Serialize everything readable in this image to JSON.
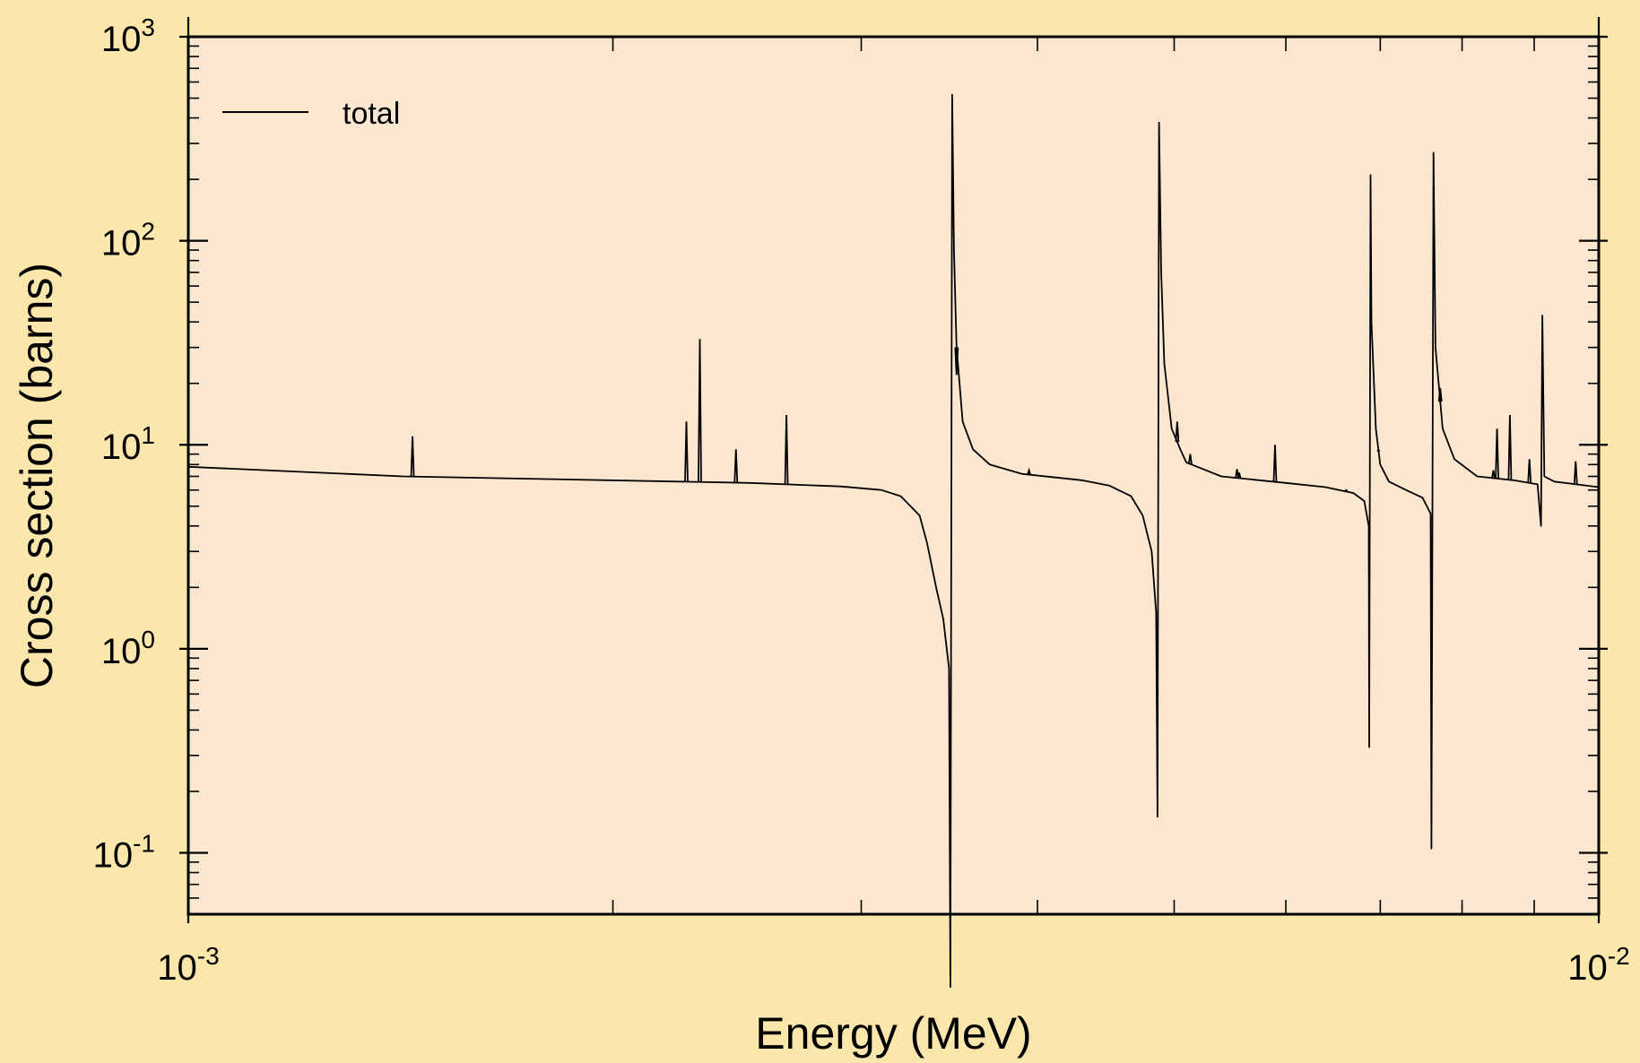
{
  "chart_data": {
    "type": "line",
    "title": "",
    "xlabel": "Energy (MeV)",
    "ylabel": "Cross section (barns)",
    "xscale": "log",
    "yscale": "log",
    "xlim": [
      0.001,
      0.01
    ],
    "ylim": [
      0.05,
      1000
    ],
    "x_ticks": [
      {
        "value": 0.001,
        "base": "10",
        "exp": "-3"
      },
      {
        "value": 0.01,
        "base": "10",
        "exp": "-2"
      }
    ],
    "y_ticks": [
      {
        "value": 0.1,
        "base": "10",
        "exp": "-1"
      },
      {
        "value": 1,
        "base": "10",
        "exp": "0"
      },
      {
        "value": 10,
        "base": "10",
        "exp": "1"
      },
      {
        "value": 100,
        "base": "10",
        "exp": "2"
      },
      {
        "value": 1000,
        "base": "10",
        "exp": "3"
      }
    ],
    "grid": false,
    "legend": {
      "position": "top-left",
      "entries": [
        "total"
      ]
    },
    "colors": {
      "plot_background": "#fbe7d0",
      "page_background": "#fbe7ac",
      "line": "#000000"
    },
    "series": [
      {
        "name": "total",
        "background_points": [
          [
            0.001,
            7.8
          ],
          [
            0.00142,
            7.0
          ],
          [
            0.0025,
            6.5
          ],
          [
            0.0029,
            6.25
          ],
          [
            0.0031,
            6.0
          ],
          [
            0.0032,
            5.6
          ],
          [
            0.0033,
            4.5
          ],
          [
            0.00334,
            3.3
          ],
          [
            0.00339,
            2.0
          ],
          [
            0.00343,
            1.4
          ],
          [
            0.003462,
            0.8
          ],
          [
            0.00347,
            0.022
          ],
          [
            0.00348,
            520
          ],
          [
            0.00349,
            90
          ],
          [
            0.003505,
            30
          ],
          [
            0.00354,
            13
          ],
          [
            0.0036,
            9.5
          ],
          [
            0.0037,
            8.0
          ],
          [
            0.0039,
            7.2
          ],
          [
            0.0043,
            6.7
          ],
          [
            0.0045,
            6.3
          ],
          [
            0.00466,
            5.6
          ],
          [
            0.00475,
            4.5
          ],
          [
            0.00482,
            3.0
          ],
          [
            0.004855,
            1.5
          ],
          [
            0.004866,
            0.15
          ],
          [
            0.004878,
            380
          ],
          [
            0.004895,
            70
          ],
          [
            0.00492,
            25
          ],
          [
            0.00498,
            12
          ],
          [
            0.00505,
            9.5
          ],
          [
            0.0051,
            8.2
          ],
          [
            0.0054,
            7.0
          ],
          [
            0.006,
            6.5
          ],
          [
            0.0064,
            6.2
          ],
          [
            0.0067,
            5.8
          ],
          [
            0.00682,
            5.3
          ],
          [
            0.00687,
            4.0
          ],
          [
            0.006875,
            0.33
          ],
          [
            0.00689,
            210
          ],
          [
            0.0069,
            40
          ],
          [
            0.00695,
            12
          ],
          [
            0.007,
            8.0
          ],
          [
            0.0071,
            6.6
          ],
          [
            0.0073,
            6.0
          ],
          [
            0.0075,
            5.5
          ],
          [
            0.0076,
            4.6
          ],
          [
            0.00761,
            0.105
          ],
          [
            0.007635,
            270
          ],
          [
            0.00766,
            30
          ],
          [
            0.00775,
            12
          ],
          [
            0.0079,
            8.5
          ],
          [
            0.0082,
            7.0
          ],
          [
            0.0087,
            6.7
          ],
          [
            0.00905,
            6.4
          ],
          [
            0.0091,
            4.0
          ],
          [
            0.00912,
            43
          ],
          [
            0.00915,
            7.0
          ],
          [
            0.0093,
            6.6
          ],
          [
            0.01,
            6.2
          ]
        ],
        "spikes": [
          [
            0.001442,
            11
          ],
          [
            0.002255,
            13
          ],
          [
            0.002305,
            33
          ],
          [
            0.002445,
            9.5
          ],
          [
            0.002655,
            14
          ],
          [
            0.003505,
            22
          ],
          [
            0.003945,
            7.5
          ],
          [
            0.005025,
            13
          ],
          [
            0.005133,
            9.0
          ],
          [
            0.00554,
            7.6
          ],
          [
            0.00556,
            7.3
          ],
          [
            0.005895,
            10
          ],
          [
            0.00662,
            6.0
          ],
          [
            0.00698,
            9.3
          ],
          [
            0.00772,
            19
          ],
          [
            0.00842,
            7.5
          ],
          [
            0.00847,
            12
          ],
          [
            0.00865,
            14
          ],
          [
            0.00893,
            8.5
          ],
          [
            0.00963,
            8.3
          ]
        ]
      }
    ]
  }
}
